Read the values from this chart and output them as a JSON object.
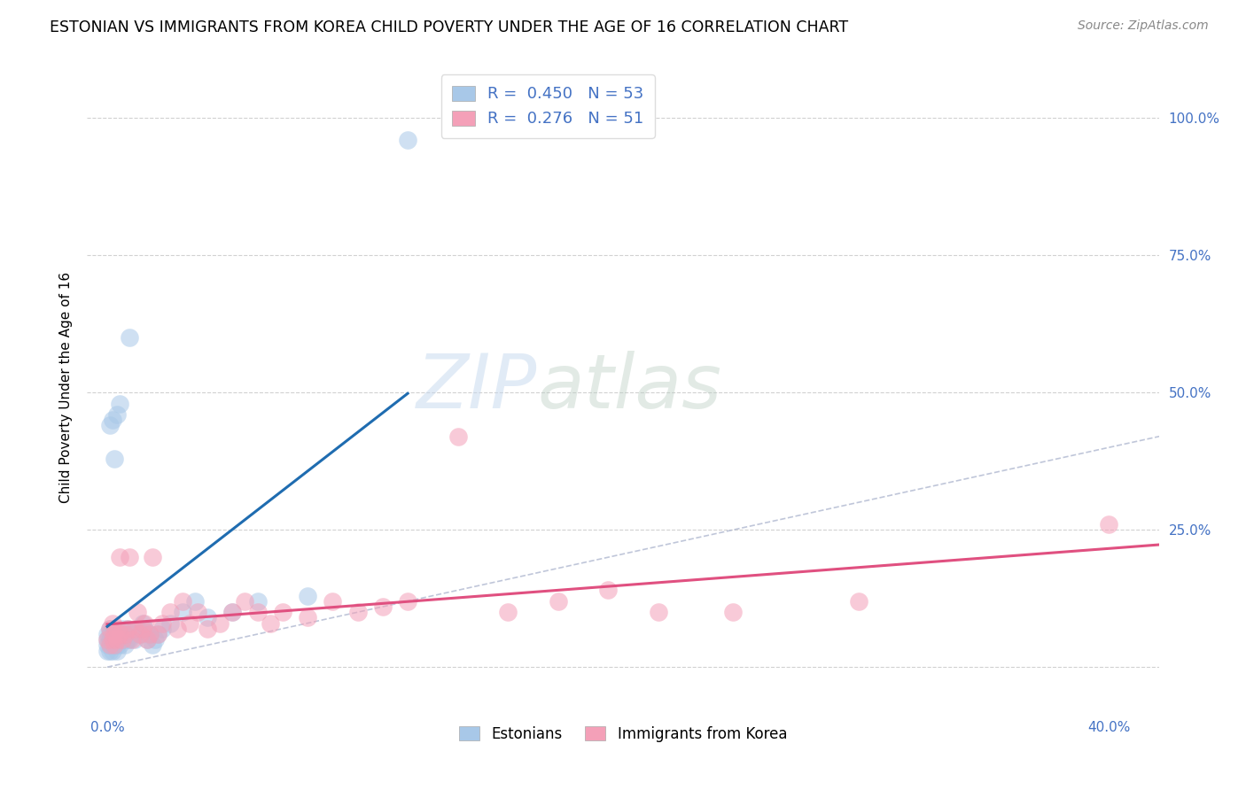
{
  "title": "ESTONIAN VS IMMIGRANTS FROM KOREA CHILD POVERTY UNDER THE AGE OF 16 CORRELATION CHART",
  "source": "Source: ZipAtlas.com",
  "xlabel_ticks": [
    "0.0%",
    "",
    "",
    "",
    "40.0%"
  ],
  "xlabel_tick_vals": [
    0.0,
    0.1,
    0.2,
    0.3,
    0.4
  ],
  "ylabel_ticks": [
    "100.0%",
    "75.0%",
    "50.0%",
    "25.0%",
    ""
  ],
  "ylabel_tick_vals": [
    1.0,
    0.75,
    0.5,
    0.25,
    0.0
  ],
  "xlim": [
    -0.008,
    0.42
  ],
  "ylim": [
    -0.08,
    1.1
  ],
  "ylabel": "Child Poverty Under the Age of 16",
  "legend_label1": "Estonians",
  "legend_label2": "Immigrants from Korea",
  "r1": 0.45,
  "n1": 53,
  "r2": 0.276,
  "n2": 51,
  "color_blue": "#a8c8e8",
  "color_pink": "#f4a0b8",
  "color_blue_line": "#1f6cb0",
  "color_pink_line": "#e05080",
  "color_diag": "#b0b8d0",
  "background_color": "#ffffff",
  "watermark_zip": "ZIP",
  "watermark_atlas": "atlas",
  "title_fontsize": 12.5,
  "source_fontsize": 10,
  "axis_tick_fontsize": 11,
  "ylabel_fontsize": 11,
  "estonians_x": [
    0.0,
    0.0,
    0.0,
    0.0,
    0.001,
    0.001,
    0.001,
    0.001,
    0.001,
    0.001,
    0.002,
    0.002,
    0.002,
    0.002,
    0.002,
    0.003,
    0.003,
    0.003,
    0.003,
    0.004,
    0.004,
    0.004,
    0.005,
    0.005,
    0.005,
    0.006,
    0.006,
    0.007,
    0.007,
    0.008,
    0.008,
    0.009,
    0.009,
    0.01,
    0.011,
    0.012,
    0.013,
    0.014,
    0.015,
    0.016,
    0.017,
    0.018,
    0.019,
    0.02,
    0.022,
    0.025,
    0.03,
    0.035,
    0.04,
    0.05,
    0.06,
    0.08,
    0.12
  ],
  "estonians_y": [
    0.03,
    0.04,
    0.05,
    0.06,
    0.03,
    0.04,
    0.05,
    0.06,
    0.07,
    0.44,
    0.03,
    0.04,
    0.05,
    0.06,
    0.45,
    0.04,
    0.05,
    0.06,
    0.38,
    0.03,
    0.04,
    0.46,
    0.04,
    0.05,
    0.48,
    0.05,
    0.07,
    0.04,
    0.06,
    0.05,
    0.07,
    0.05,
    0.6,
    0.06,
    0.05,
    0.07,
    0.06,
    0.08,
    0.07,
    0.05,
    0.06,
    0.04,
    0.05,
    0.06,
    0.07,
    0.08,
    0.1,
    0.12,
    0.09,
    0.1,
    0.12,
    0.13,
    0.96
  ],
  "korea_x": [
    0.0,
    0.001,
    0.001,
    0.002,
    0.002,
    0.003,
    0.003,
    0.004,
    0.004,
    0.005,
    0.005,
    0.006,
    0.007,
    0.008,
    0.009,
    0.01,
    0.011,
    0.012,
    0.013,
    0.014,
    0.015,
    0.016,
    0.017,
    0.018,
    0.02,
    0.022,
    0.025,
    0.028,
    0.03,
    0.033,
    0.036,
    0.04,
    0.045,
    0.05,
    0.055,
    0.06,
    0.065,
    0.07,
    0.08,
    0.09,
    0.1,
    0.11,
    0.12,
    0.14,
    0.16,
    0.18,
    0.2,
    0.22,
    0.25,
    0.3,
    0.4
  ],
  "korea_y": [
    0.05,
    0.04,
    0.07,
    0.05,
    0.08,
    0.04,
    0.06,
    0.05,
    0.07,
    0.06,
    0.2,
    0.05,
    0.06,
    0.07,
    0.2,
    0.05,
    0.07,
    0.1,
    0.06,
    0.07,
    0.08,
    0.05,
    0.06,
    0.2,
    0.06,
    0.08,
    0.1,
    0.07,
    0.12,
    0.08,
    0.1,
    0.07,
    0.08,
    0.1,
    0.12,
    0.1,
    0.08,
    0.1,
    0.09,
    0.12,
    0.1,
    0.11,
    0.12,
    0.42,
    0.1,
    0.12,
    0.14,
    0.1,
    0.1,
    0.12,
    0.26
  ]
}
